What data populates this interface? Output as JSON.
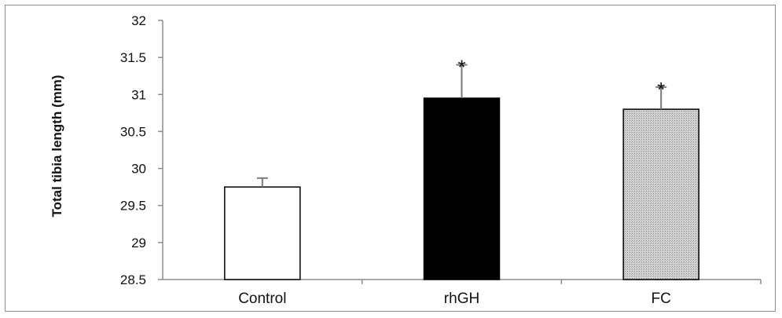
{
  "chart_data": {
    "type": "bar",
    "categories": [
      "Control",
      "rhGH",
      "FC"
    ],
    "values": [
      29.75,
      30.95,
      30.8
    ],
    "error": [
      0.12,
      0.45,
      0.3
    ],
    "significance": [
      "",
      "*",
      "*"
    ],
    "bar_fills": [
      "white",
      "black",
      "dotted-gray"
    ],
    "title": "",
    "xlabel": "",
    "ylabel": "Total tibia length (mm)",
    "ylim": [
      28.5,
      32
    ],
    "yticks": [
      28.5,
      29,
      29.5,
      30,
      30.5,
      31,
      31.5,
      32
    ],
    "ytick_labels": [
      "28.5",
      "29",
      "29.5",
      "30",
      "30.5",
      "31",
      "31.5",
      "32"
    ],
    "grid": false,
    "legend": "none"
  }
}
